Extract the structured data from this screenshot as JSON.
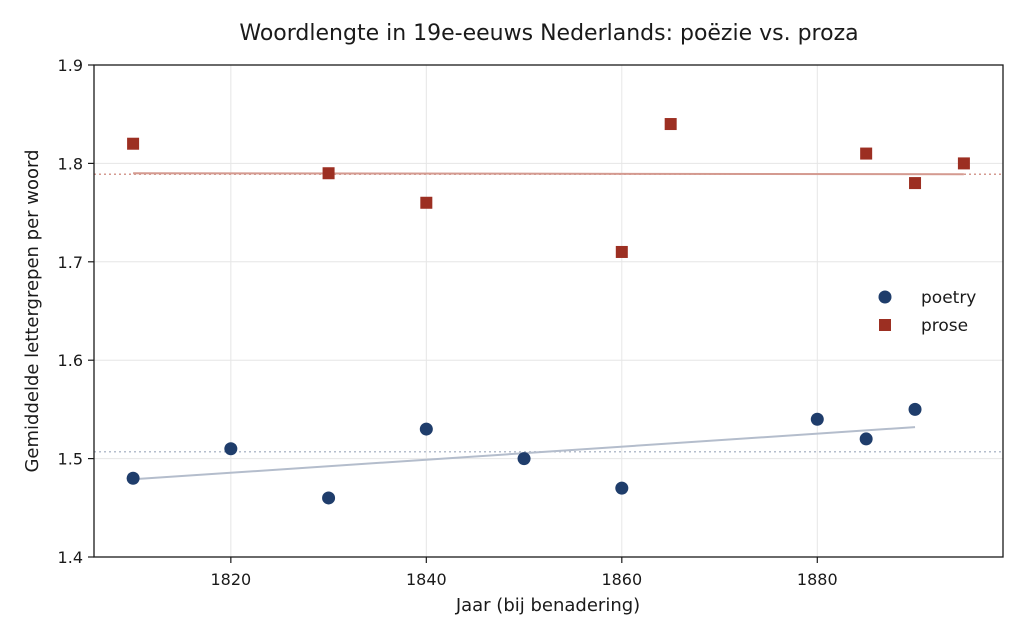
{
  "chart_data": {
    "type": "scatter",
    "title": "Woordlengte in 19e-eeuws Nederlands: poëzie vs. proza",
    "xlabel": "Jaar (bij benadering)",
    "ylabel": "Gemiddelde lettergrepen per woord",
    "xlim": [
      1806,
      1899
    ],
    "ylim": [
      1.4,
      1.9
    ],
    "xticks": [
      1820,
      1840,
      1860,
      1880
    ],
    "yticks": [
      1.4,
      1.5,
      1.6,
      1.7,
      1.8,
      1.9
    ],
    "grid": true,
    "legend_position": "right",
    "series": [
      {
        "name": "poetry",
        "marker": "circle",
        "color": "#1f3d6b",
        "x": [
          1810,
          1820,
          1830,
          1840,
          1850,
          1860,
          1880,
          1885,
          1890
        ],
        "y": [
          1.48,
          1.51,
          1.46,
          1.53,
          1.5,
          1.47,
          1.54,
          1.52,
          1.55
        ],
        "trend": {
          "x": [
            1810,
            1890
          ],
          "y": [
            1.479,
            1.532
          ],
          "color": "#b4bdcc"
        },
        "mean": 1.507
      },
      {
        "name": "prose",
        "marker": "square",
        "color": "#9c2f22",
        "x": [
          1810,
          1830,
          1840,
          1860,
          1865,
          1885,
          1890,
          1895
        ],
        "y": [
          1.82,
          1.79,
          1.76,
          1.71,
          1.84,
          1.81,
          1.78,
          1.8
        ],
        "trend": {
          "x": [
            1810,
            1895
          ],
          "y": [
            1.79,
            1.789
          ],
          "color": "#d49a90"
        },
        "mean": 1.789
      }
    ]
  }
}
